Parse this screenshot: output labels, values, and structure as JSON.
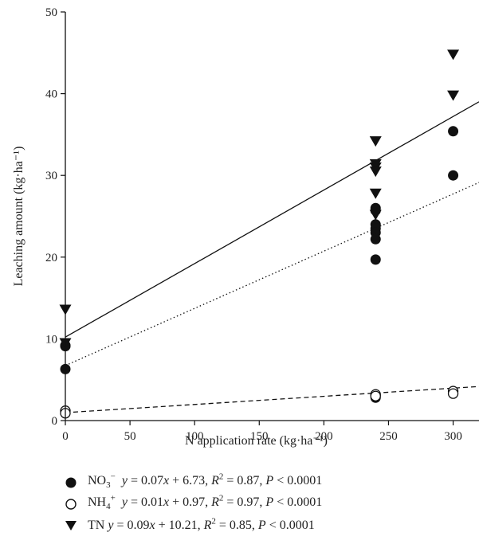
{
  "chart_data": {
    "type": "scatter",
    "xlabel": "N application rate (kg·ha⁻¹)",
    "ylabel": "Leaching amount (kg·ha⁻¹)",
    "xlim": [
      0,
      320
    ],
    "ylim": [
      0,
      50
    ],
    "xticks": [
      0,
      50,
      100,
      150,
      200,
      250,
      300
    ],
    "yticks": [
      0,
      10,
      20,
      30,
      40,
      50
    ],
    "grid": false,
    "legend_position": "bottom",
    "series": [
      {
        "key": "no3",
        "name": "NO3⁻",
        "marker": "filled-circle",
        "line_style": "dotted",
        "fit": {
          "slope": 0.07,
          "intercept": 6.73
        },
        "equation": "y = 0.07x + 6.73, R² = 0.87, P < 0.0001",
        "points": [
          [
            0,
            9.1
          ],
          [
            0,
            9.2
          ],
          [
            0,
            6.3
          ],
          [
            240,
            26.0
          ],
          [
            240,
            25.7
          ],
          [
            240,
            24.0
          ],
          [
            240,
            23.5
          ],
          [
            240,
            23.0
          ],
          [
            240,
            22.2
          ],
          [
            240,
            19.7
          ],
          [
            240,
            2.8
          ],
          [
            300,
            35.4
          ],
          [
            300,
            30.0
          ]
        ]
      },
      {
        "key": "nh4",
        "name": "NH4⁺",
        "marker": "open-circle",
        "line_style": "dashed",
        "fit": {
          "slope": 0.01,
          "intercept": 0.97
        },
        "equation": "y = 0.01x + 0.97, R² = 0.97, P < 0.0001",
        "points": [
          [
            0,
            1.2
          ],
          [
            0,
            0.9
          ],
          [
            240,
            3.2
          ],
          [
            240,
            3.0
          ],
          [
            300,
            3.6
          ],
          [
            300,
            3.3
          ]
        ]
      },
      {
        "key": "tn",
        "name": "TN",
        "marker": "filled-triangle-down",
        "line_style": "solid",
        "fit": {
          "slope": 0.09,
          "intercept": 10.21
        },
        "equation": "y = 0.09x + 10.21, R² = 0.85, P < 0.0001",
        "points": [
          [
            0,
            13.6
          ],
          [
            0,
            9.5
          ],
          [
            240,
            34.2
          ],
          [
            240,
            31.4
          ],
          [
            240,
            31.0
          ],
          [
            240,
            30.5
          ],
          [
            240,
            27.8
          ],
          [
            240,
            25.2
          ],
          [
            300,
            44.8
          ],
          [
            300,
            39.8
          ]
        ]
      }
    ]
  },
  "legend": {
    "items": [
      {
        "label": "NO<sub>3</sub>",
        "charge": "−",
        "eq": "y = 0.07x + 6.73, R² = 0.87, P < 0.0001"
      },
      {
        "label": "NH<sub>4</sub>",
        "charge": "+",
        "eq": "y = 0.01x + 0.97, R² = 0.97, P < 0.0001"
      },
      {
        "label": "TN",
        "charge": "",
        "eq": "y = 0.09x + 10.21, R² = 0.85, P < 0.0001"
      }
    ]
  }
}
